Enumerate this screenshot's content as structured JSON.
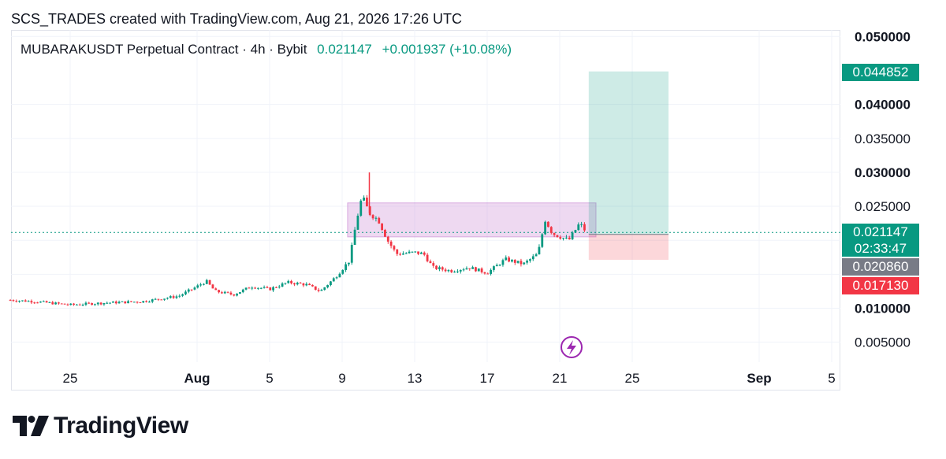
{
  "header": {
    "attribution": "SCS_TRADES created with TradingView.com, Aug 21, 2026 17:26 UTC"
  },
  "legend": {
    "symbol": "MUBARAKUSDT Perpetual Contract · 4h · Bybit",
    "last": "0.021147",
    "change": "+0.001937 (+10.08%)"
  },
  "colors": {
    "up": "#089981",
    "down": "#f23645",
    "range_box": "#e1bee7",
    "target": "#c8e6e0",
    "stop": "#f8d0d4"
  },
  "price_labels": {
    "target": "0.044852",
    "last": "0.021147",
    "countdown": "02:33:47",
    "entry": "0.020860",
    "stop": "0.017130"
  },
  "brand": {
    "name": "TradingView",
    "logo_icon": "tradingview-logo-icon"
  },
  "event_icon": "lightning-icon",
  "chart_data": {
    "type": "candlestick",
    "title": "MUBARAKUSDT Perpetual Contract · 4h · Bybit",
    "yticks": [
      "0.050000",
      "0.040000",
      "0.035000",
      "0.030000",
      "0.025000",
      "0.010000",
      "0.005000"
    ],
    "ytick_values": [
      0.05,
      0.04,
      0.035,
      0.03,
      0.025,
      0.01,
      0.005
    ],
    "bold_yticks": [
      "0.050000",
      "0.040000",
      "0.030000",
      "0.010000"
    ],
    "xticks": [
      "25",
      "Aug",
      "5",
      "9",
      "13",
      "17",
      "21",
      "25",
      "Sep",
      "5"
    ],
    "xtick_days": [
      -7,
      0,
      4,
      8,
      12,
      16,
      20,
      24,
      31,
      35
    ],
    "bold_xticks": [
      "Aug",
      "Sep"
    ],
    "ylim": [
      0,
      0.052
    ],
    "xlim_days": [
      -10.3,
      35.3
    ],
    "price_path": [
      [
        -10.3,
        0.0112
      ],
      [
        -9,
        0.011
      ],
      [
        -7,
        0.0105
      ],
      [
        -5,
        0.0108
      ],
      [
        -3,
        0.011
      ],
      [
        -1,
        0.0118
      ],
      [
        0,
        0.0132
      ],
      [
        0.5,
        0.014
      ],
      [
        1,
        0.0125
      ],
      [
        2,
        0.012
      ],
      [
        3,
        0.0132
      ],
      [
        4,
        0.0128
      ],
      [
        5,
        0.0138
      ],
      [
        6,
        0.0135
      ],
      [
        6.8,
        0.0125
      ],
      [
        7.6,
        0.0145
      ],
      [
        8.4,
        0.017
      ],
      [
        8.8,
        0.023
      ],
      [
        9.1,
        0.0265
      ],
      [
        9.5,
        0.024
      ],
      [
        10,
        0.023
      ],
      [
        10.5,
        0.02
      ],
      [
        11,
        0.018
      ],
      [
        12,
        0.0182
      ],
      [
        12.5,
        0.018
      ],
      [
        13,
        0.016
      ],
      [
        14,
        0.0155
      ],
      [
        15,
        0.016
      ],
      [
        16,
        0.0152
      ],
      [
        17,
        0.0172
      ],
      [
        18,
        0.0165
      ],
      [
        18.8,
        0.018
      ],
      [
        19.2,
        0.023
      ],
      [
        19.6,
        0.021
      ],
      [
        20.5,
        0.02
      ],
      [
        21.1,
        0.0225
      ],
      [
        21.5,
        0.0211
      ]
    ],
    "spike": {
      "day": 9.5,
      "high": 0.03
    },
    "range_box": {
      "x_from_day": 8.3,
      "x_to_day": 22.0,
      "y_low": 0.0205,
      "y_high": 0.0255
    },
    "position": {
      "x_from_day": 21.6,
      "x_to_day": 26.0,
      "target": 0.044852,
      "entry": 0.02086,
      "stop": 0.01713
    },
    "last_price": 0.021147
  }
}
